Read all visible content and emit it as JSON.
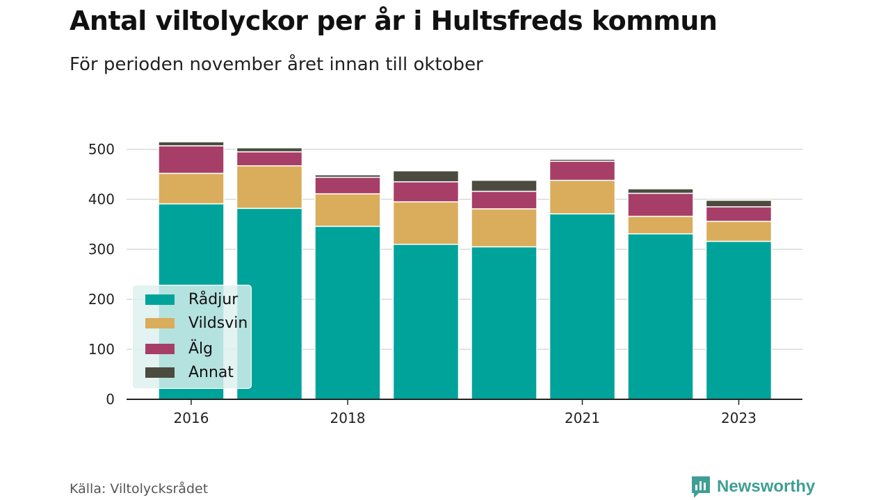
{
  "title": "Antal viltolyckor per år i Hultsfreds kommun",
  "subtitle": "För perioden november året innan till oktober",
  "source": "Källa: Viltolycksrådet",
  "brand": {
    "name": "Newsworthy",
    "icon": "newsworthy-logo-icon",
    "color": "#3f9e95"
  },
  "chart_data": {
    "type": "bar",
    "stacked": true,
    "categories": [
      "2016",
      "2017",
      "2018",
      "2019",
      "2020",
      "2021",
      "2022",
      "2023"
    ],
    "x_tick_labels": [
      "2016",
      "",
      "2018",
      "",
      "",
      "2021",
      "",
      "2023"
    ],
    "series": [
      {
        "name": "Rådjur",
        "color": "#00a39a",
        "values": [
          391,
          382,
          346,
          310,
          305,
          371,
          331,
          316
        ]
      },
      {
        "name": "Vildsvin",
        "color": "#d9ad5b",
        "values": [
          61,
          85,
          65,
          85,
          76,
          67,
          35,
          40
        ]
      },
      {
        "name": "Älg",
        "color": "#a73e68",
        "values": [
          55,
          28,
          33,
          40,
          35,
          38,
          46,
          29
        ]
      },
      {
        "name": "Annat",
        "color": "#4b4b3f",
        "values": [
          8,
          8,
          5,
          22,
          22,
          4,
          9,
          13
        ]
      }
    ],
    "ylim": [
      0,
      500
    ],
    "yticks": [
      0,
      100,
      200,
      300,
      400,
      500
    ],
    "grid": true,
    "legend_position": "bottom-left"
  }
}
